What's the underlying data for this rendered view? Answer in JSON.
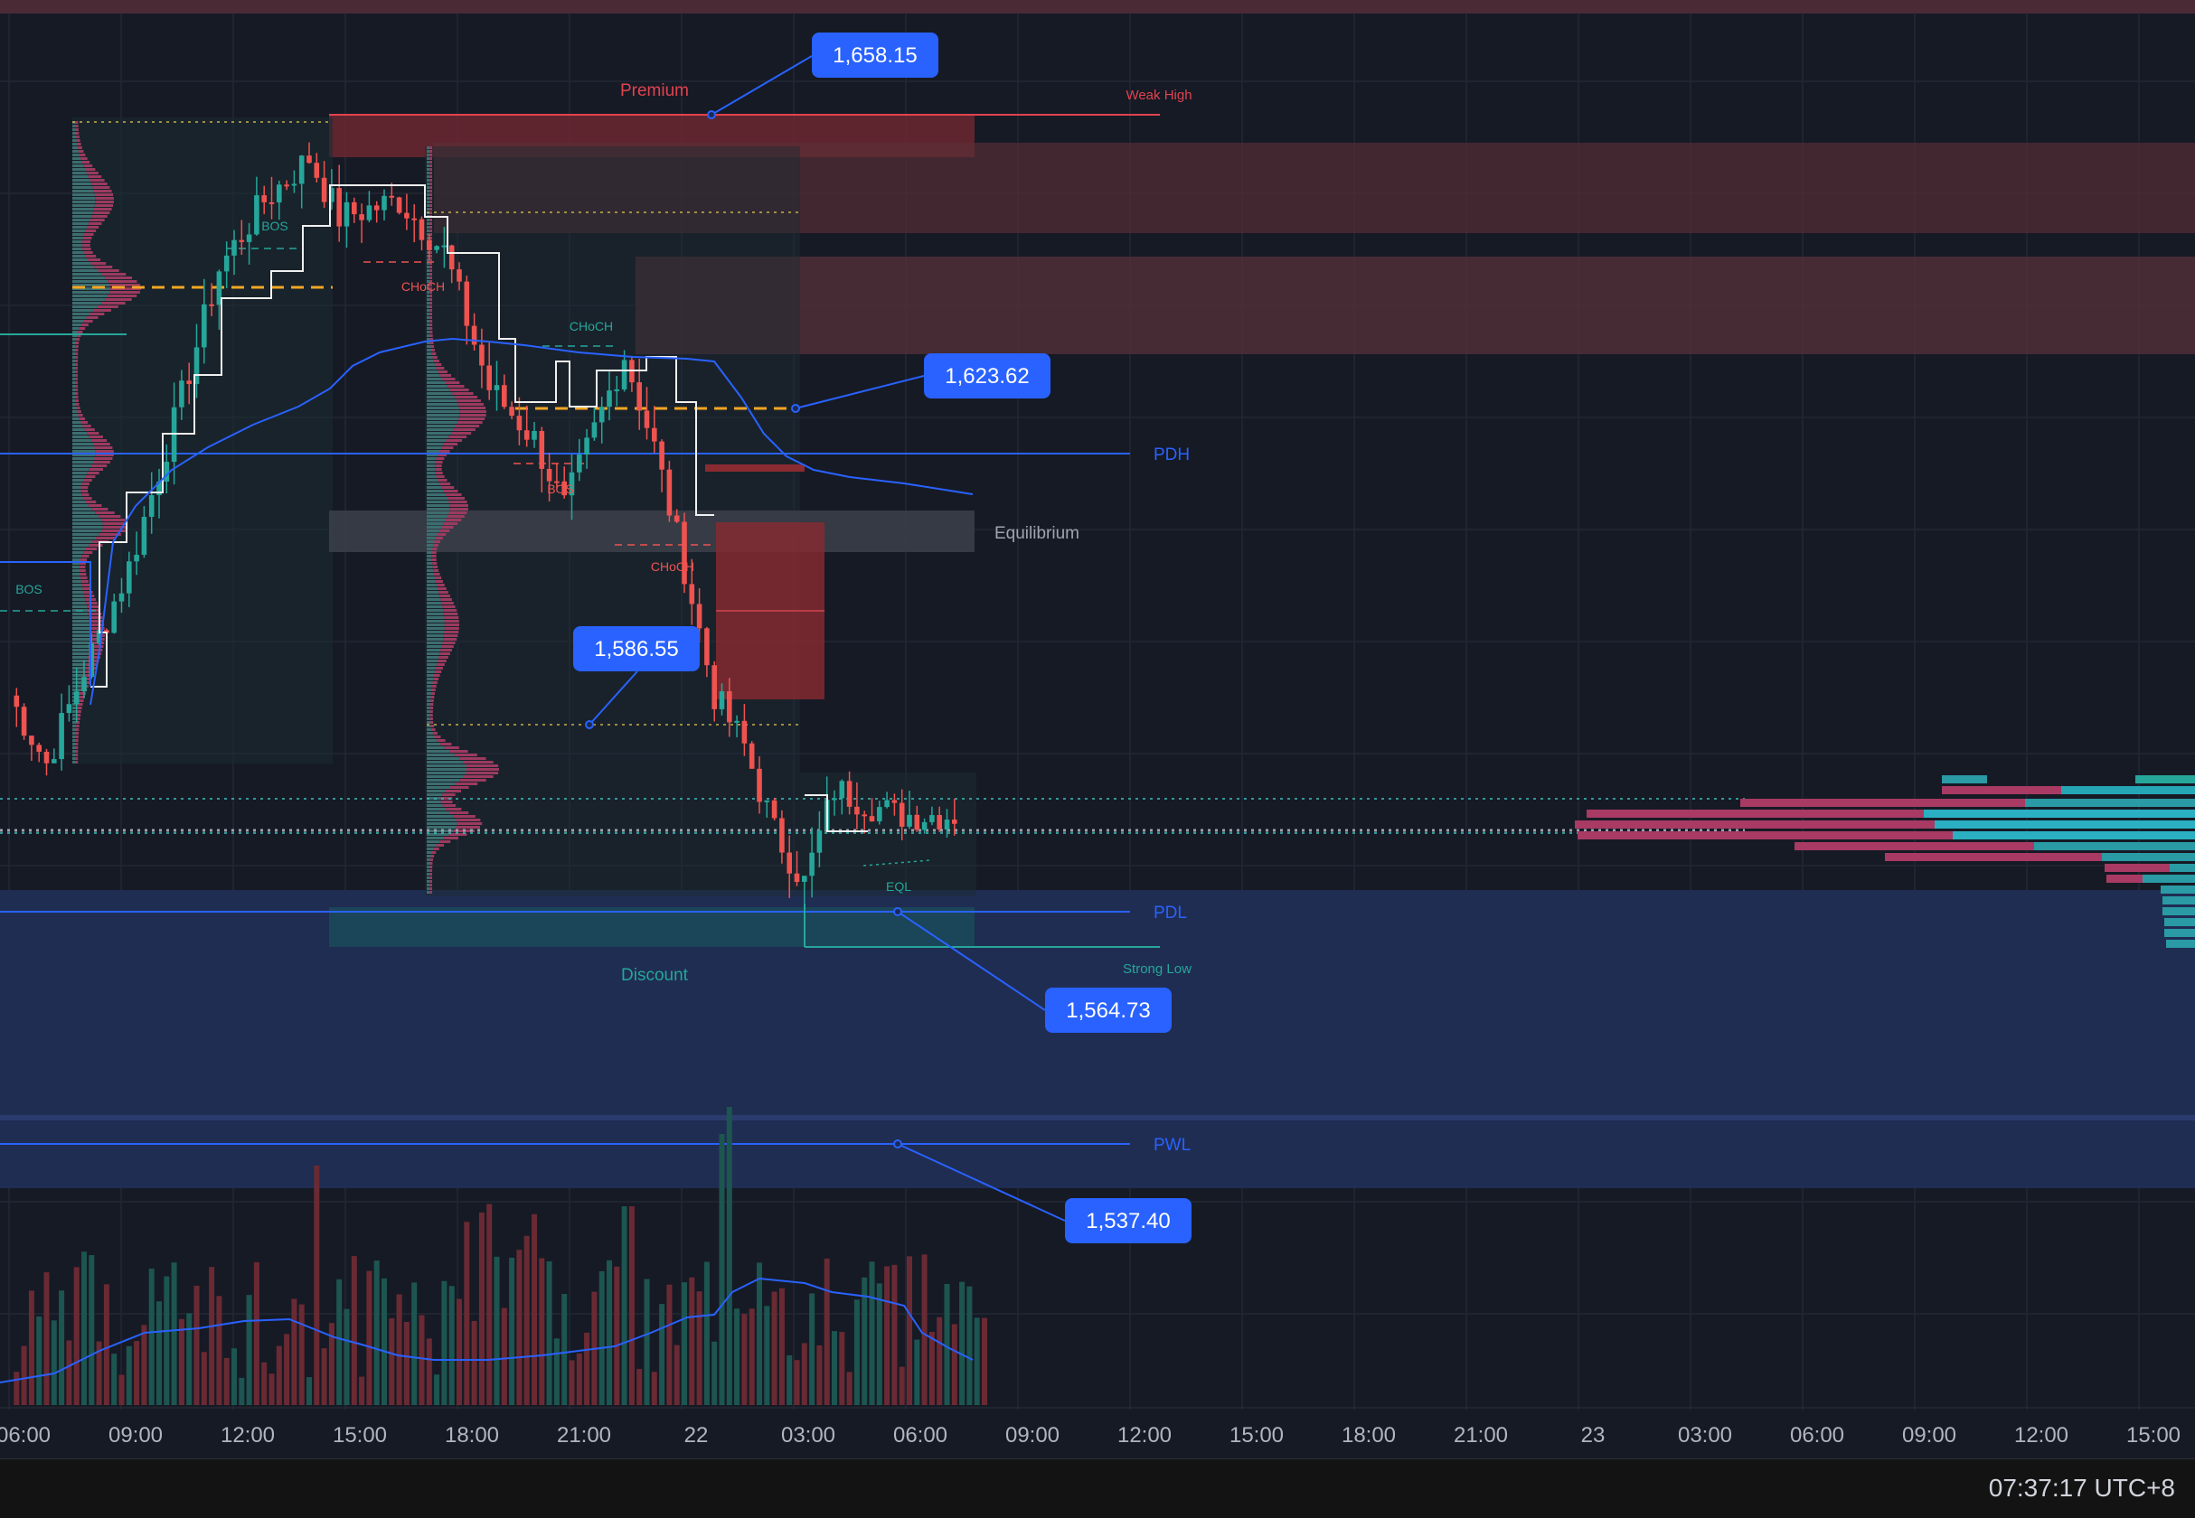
{
  "chart_data": {
    "type": "candlestick",
    "instrument_timeframe": "",
    "x_ticks": [
      "06:00",
      "09:00",
      "12:00",
      "15:00",
      "18:00",
      "21:00",
      "22",
      "03:00",
      "06:00",
      "09:00",
      "12:00",
      "15:00",
      "18:00",
      "21:00",
      "23",
      "03:00",
      "06:00",
      "09:00",
      "12:00",
      "15:00"
    ],
    "price_labels": [
      {
        "id": "label-1658",
        "text": "1,658.15",
        "value": 1658.15
      },
      {
        "id": "label-1623",
        "text": "1,623.62",
        "value": 1623.62
      },
      {
        "id": "label-1586",
        "text": "1,586.55",
        "value": 1586.55
      },
      {
        "id": "label-1564",
        "text": "1,564.73",
        "value": 1564.73
      },
      {
        "id": "label-1537",
        "text": "1,537.40",
        "value": 1537.4
      }
    ],
    "level_labels": {
      "premium": "Premium",
      "weak_high": "Weak High",
      "equilibrium": "Equilibrium",
      "discount": "Discount",
      "strong_low": "Strong Low",
      "pdh": "PDH",
      "pdl": "PDL",
      "pwl": "PWL",
      "eql": "EQL"
    },
    "structure_labels": [
      {
        "text": "BOS",
        "color": "#26a69a",
        "price": 1640,
        "time": "10:50"
      },
      {
        "text": "CHoCH",
        "color": "#ef5350",
        "price": 1633,
        "time": "16:50"
      },
      {
        "text": "CHoCH",
        "color": "#26a69a",
        "price": 1629,
        "time": "21:20"
      },
      {
        "text": "BOS",
        "color": "#ef5350",
        "price": 1613,
        "time": "20:50"
      },
      {
        "text": "CHoCH",
        "color": "#ef5350",
        "price": 1601,
        "time": "23:00"
      },
      {
        "text": "BOS",
        "color": "#26a69a",
        "price": 1600,
        "time": "06:00"
      }
    ],
    "candles": {
      "open": 1590,
      "close": 1575,
      "pivots": [
        [
          0,
          1590
        ],
        [
          5,
          1582
        ],
        [
          10,
          1593
        ],
        [
          16,
          1605
        ],
        [
          22,
          1622
        ],
        [
          28,
          1640
        ],
        [
          34,
          1648
        ],
        [
          40,
          1653
        ],
        [
          44,
          1646
        ],
        [
          52,
          1648
        ],
        [
          58,
          1642
        ],
        [
          64,
          1626
        ],
        [
          70,
          1620
        ],
        [
          74,
          1612
        ],
        [
          78,
          1621
        ],
        [
          82,
          1630
        ],
        [
          86,
          1619
        ],
        [
          90,
          1605
        ],
        [
          94,
          1590
        ],
        [
          98,
          1584
        ],
        [
          102,
          1574
        ],
        [
          106,
          1568
        ],
        [
          110,
          1579
        ],
        [
          118,
          1576
        ],
        [
          126,
          1576
        ]
      ]
    },
    "volume_ma": "blue line",
    "vwap": "blue line",
    "colors": {
      "up": "#26a69a",
      "down": "#ef5350",
      "accent": "#2962ff",
      "background": "#161a25"
    }
  },
  "status": {
    "clock": "07:37:17 UTC+8"
  }
}
